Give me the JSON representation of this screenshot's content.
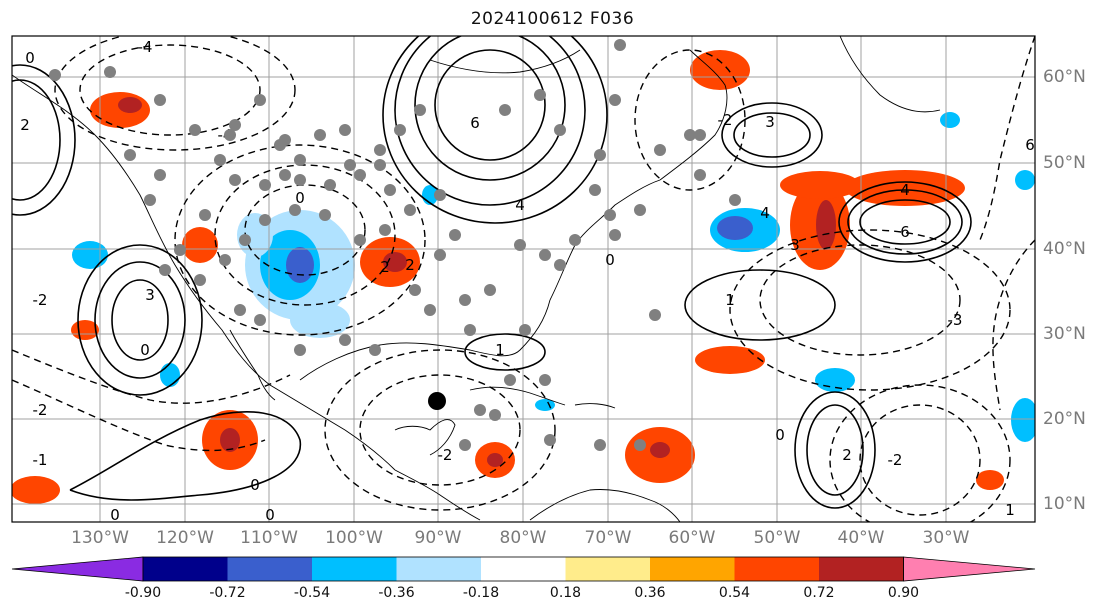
{
  "title": "2024100612 F036",
  "longitude_labels": [
    "130°W",
    "120°W",
    "110°W",
    "100°W",
    "90°W",
    "80°W",
    "70°W",
    "60°W",
    "50°W",
    "40°W",
    "30°W"
  ],
  "latitude_labels": [
    "60°N",
    "50°N",
    "40°N",
    "30°N",
    "20°N",
    "10°N"
  ],
  "contour_labels": [
    "-4",
    "-3",
    "-2",
    "-1",
    "0",
    "1",
    "2",
    "3",
    "4",
    "6"
  ],
  "colorbar": {
    "ticks": [
      "-0.90",
      "-0.72",
      "-0.54",
      "-0.36",
      "-0.18",
      "0.18",
      "0.36",
      "0.54",
      "0.72",
      "0.90"
    ],
    "colors": [
      "#8a2be2",
      "#00008b",
      "#3a5fcd",
      "#00bfff",
      "#b0e2ff",
      "#ffffff",
      "#ffec8b",
      "#ffa500",
      "#ff4500",
      "#b22222",
      "#ff7fb0"
    ]
  },
  "colors": {
    "positive_contour": "#000000",
    "negative_contour": "#000000",
    "grid": "#a0a0a0",
    "coast": "#000000",
    "station_dot": "#808080",
    "storm_marker": "#000000"
  }
}
